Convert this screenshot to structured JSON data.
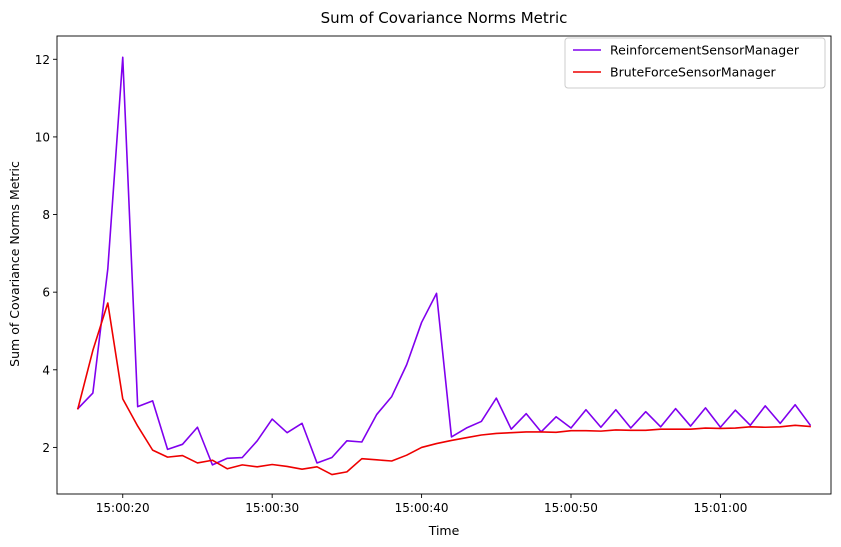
{
  "chart_data": {
    "type": "line",
    "title": "Sum of Covariance Norms Metric",
    "xlabel": "Time",
    "ylabel": "Sum of Covariance Norms Metric",
    "x_unit": "time",
    "x": [
      "15:00:17",
      "15:00:18",
      "15:00:19",
      "15:00:20",
      "15:00:21",
      "15:00:22",
      "15:00:23",
      "15:00:24",
      "15:00:25",
      "15:00:26",
      "15:00:27",
      "15:00:28",
      "15:00:29",
      "15:00:30",
      "15:00:31",
      "15:00:32",
      "15:00:33",
      "15:00:34",
      "15:00:35",
      "15:00:36",
      "15:00:37",
      "15:00:38",
      "15:00:39",
      "15:00:40",
      "15:00:41",
      "15:00:42",
      "15:00:43",
      "15:00:44",
      "15:00:45",
      "15:00:46",
      "15:00:47",
      "15:00:48",
      "15:00:49",
      "15:00:50",
      "15:00:51",
      "15:00:52",
      "15:00:53",
      "15:00:54",
      "15:00:55",
      "15:00:56",
      "15:00:57",
      "15:00:58",
      "15:00:59",
      "15:01:00",
      "15:01:01",
      "15:01:02",
      "15:01:03",
      "15:01:04",
      "15:01:05",
      "15:01:06"
    ],
    "xlim": [
      "15:00:15.6",
      "15:01:07.4"
    ],
    "xticks": [
      "15:00:20",
      "15:00:30",
      "15:00:40",
      "15:00:50",
      "15:01:00"
    ],
    "ylim": [
      0.8,
      12.6
    ],
    "yticks": [
      2,
      4,
      6,
      8,
      10,
      12
    ],
    "grid": false,
    "legend_position": "top-right",
    "series": [
      {
        "name": "ReinforcementSensorManager",
        "color": "#8000ee",
        "values": [
          3.0,
          3.4,
          6.6,
          12.05,
          3.05,
          3.2,
          1.95,
          2.08,
          2.52,
          1.55,
          1.72,
          1.74,
          2.17,
          2.73,
          2.38,
          2.62,
          1.6,
          1.74,
          2.17,
          2.14,
          2.85,
          3.31,
          4.13,
          5.22,
          5.97,
          2.27,
          2.5,
          2.67,
          3.27,
          2.47,
          2.87,
          2.4,
          2.79,
          2.5,
          2.97,
          2.52,
          2.97,
          2.5,
          2.92,
          2.53,
          3.0,
          2.55,
          3.02,
          2.52,
          2.96,
          2.57,
          3.07,
          2.62,
          3.1,
          2.58
        ]
      },
      {
        "name": "BruteForceSensorManager",
        "color": "#ee0000",
        "values": [
          3.0,
          4.5,
          5.72,
          3.25,
          2.55,
          1.93,
          1.75,
          1.79,
          1.6,
          1.67,
          1.45,
          1.55,
          1.5,
          1.56,
          1.51,
          1.44,
          1.5,
          1.3,
          1.37,
          1.71,
          1.68,
          1.65,
          1.8,
          2.0,
          2.1,
          2.18,
          2.25,
          2.32,
          2.36,
          2.38,
          2.4,
          2.4,
          2.39,
          2.43,
          2.43,
          2.42,
          2.45,
          2.44,
          2.44,
          2.47,
          2.47,
          2.47,
          2.5,
          2.49,
          2.5,
          2.53,
          2.52,
          2.53,
          2.57,
          2.54
        ]
      }
    ]
  }
}
